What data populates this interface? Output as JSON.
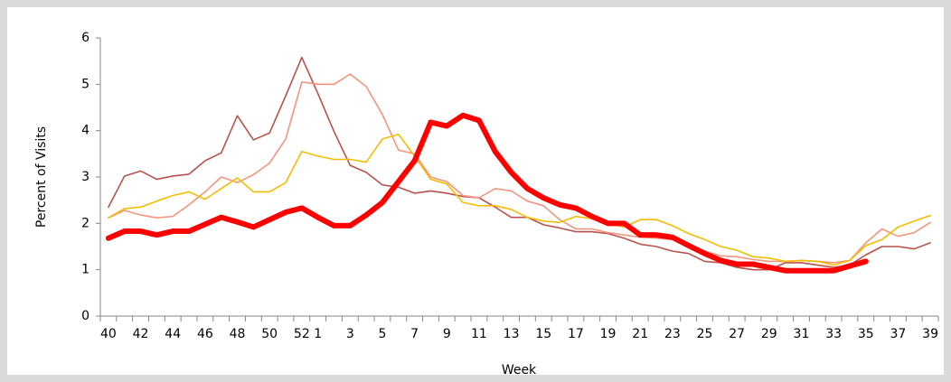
{
  "chart_data": {
    "type": "line",
    "x_label": "Week",
    "y_label": "Percent of Visits",
    "categories": [
      40,
      null,
      42,
      null,
      44,
      null,
      46,
      null,
      48,
      null,
      50,
      null,
      52,
      1,
      null,
      3,
      null,
      5,
      null,
      7,
      null,
      9,
      null,
      11,
      null,
      13,
      null,
      15,
      null,
      17,
      null,
      19,
      null,
      21,
      null,
      23,
      null,
      25,
      null,
      27,
      null,
      29,
      null,
      31,
      null,
      33,
      null,
      35,
      null,
      37,
      null,
      39
    ],
    "ylim": [
      0,
      6
    ],
    "yticks": [
      0,
      1,
      2,
      3,
      4,
      5,
      6
    ],
    "grid": false,
    "series": [
      {
        "color": "#b9514c",
        "width": 1.6,
        "values": [
          2.35,
          3.02,
          3.13,
          2.95,
          3.02,
          3.06,
          3.35,
          3.52,
          4.32,
          3.8,
          3.95,
          4.75,
          5.58,
          4.8,
          3.98,
          3.25,
          3.1,
          2.83,
          2.78,
          2.65,
          2.7,
          2.65,
          2.58,
          2.55,
          2.35,
          2.13,
          2.13,
          1.97,
          1.9,
          1.82,
          1.82,
          1.78,
          1.68,
          1.55,
          1.5,
          1.4,
          1.35,
          1.18,
          1.15,
          1.05,
          1.0,
          1.0,
          1.15,
          1.15,
          1.1,
          1.05,
          1.1,
          1.32,
          1.5,
          1.5,
          1.45,
          1.58
        ]
      },
      {
        "color": "#f4957c",
        "width": 1.6,
        "values": [
          2.12,
          2.28,
          2.18,
          2.12,
          2.15,
          2.4,
          2.68,
          3.0,
          2.88,
          3.05,
          3.3,
          3.82,
          5.05,
          5.0,
          5.0,
          5.22,
          4.95,
          4.35,
          3.58,
          3.5,
          3.0,
          2.9,
          2.6,
          2.55,
          2.75,
          2.7,
          2.48,
          2.38,
          2.08,
          1.88,
          1.88,
          1.8,
          1.75,
          1.7,
          1.68,
          1.65,
          1.55,
          1.4,
          1.3,
          1.28,
          1.22,
          1.18,
          1.18,
          1.2,
          1.18,
          1.15,
          1.2,
          1.58,
          1.88,
          1.72,
          1.8,
          2.02
        ]
      },
      {
        "color": "#f5bd00",
        "width": 1.6,
        "values": [
          2.12,
          2.32,
          2.35,
          2.48,
          2.6,
          2.68,
          2.52,
          2.75,
          2.98,
          2.68,
          2.68,
          2.88,
          3.55,
          3.45,
          3.38,
          3.38,
          3.32,
          3.82,
          3.92,
          3.45,
          2.95,
          2.85,
          2.45,
          2.38,
          2.38,
          2.3,
          2.13,
          2.05,
          2.02,
          2.15,
          2.1,
          2.0,
          1.92,
          2.08,
          2.08,
          1.95,
          1.78,
          1.65,
          1.5,
          1.42,
          1.28,
          1.25,
          1.18,
          1.2,
          1.18,
          1.1,
          1.2,
          1.52,
          1.65,
          1.92,
          2.05,
          2.17
        ]
      },
      {
        "color": "#ff0000",
        "width": 6,
        "values": [
          1.68,
          1.83,
          1.83,
          1.75,
          1.83,
          1.83,
          1.98,
          2.13,
          2.03,
          1.92,
          2.08,
          2.24,
          2.33,
          2.13,
          1.95,
          1.95,
          2.18,
          2.45,
          2.9,
          3.35,
          4.18,
          4.1,
          4.33,
          4.22,
          3.55,
          3.1,
          2.75,
          2.55,
          2.4,
          2.33,
          2.15,
          2.0,
          2.0,
          1.75,
          1.75,
          1.7,
          1.52,
          1.35,
          1.2,
          1.12,
          1.12,
          1.05,
          0.98,
          0.98,
          0.98,
          0.98,
          1.08,
          1.18,
          null,
          null,
          null,
          null
        ]
      }
    ]
  }
}
